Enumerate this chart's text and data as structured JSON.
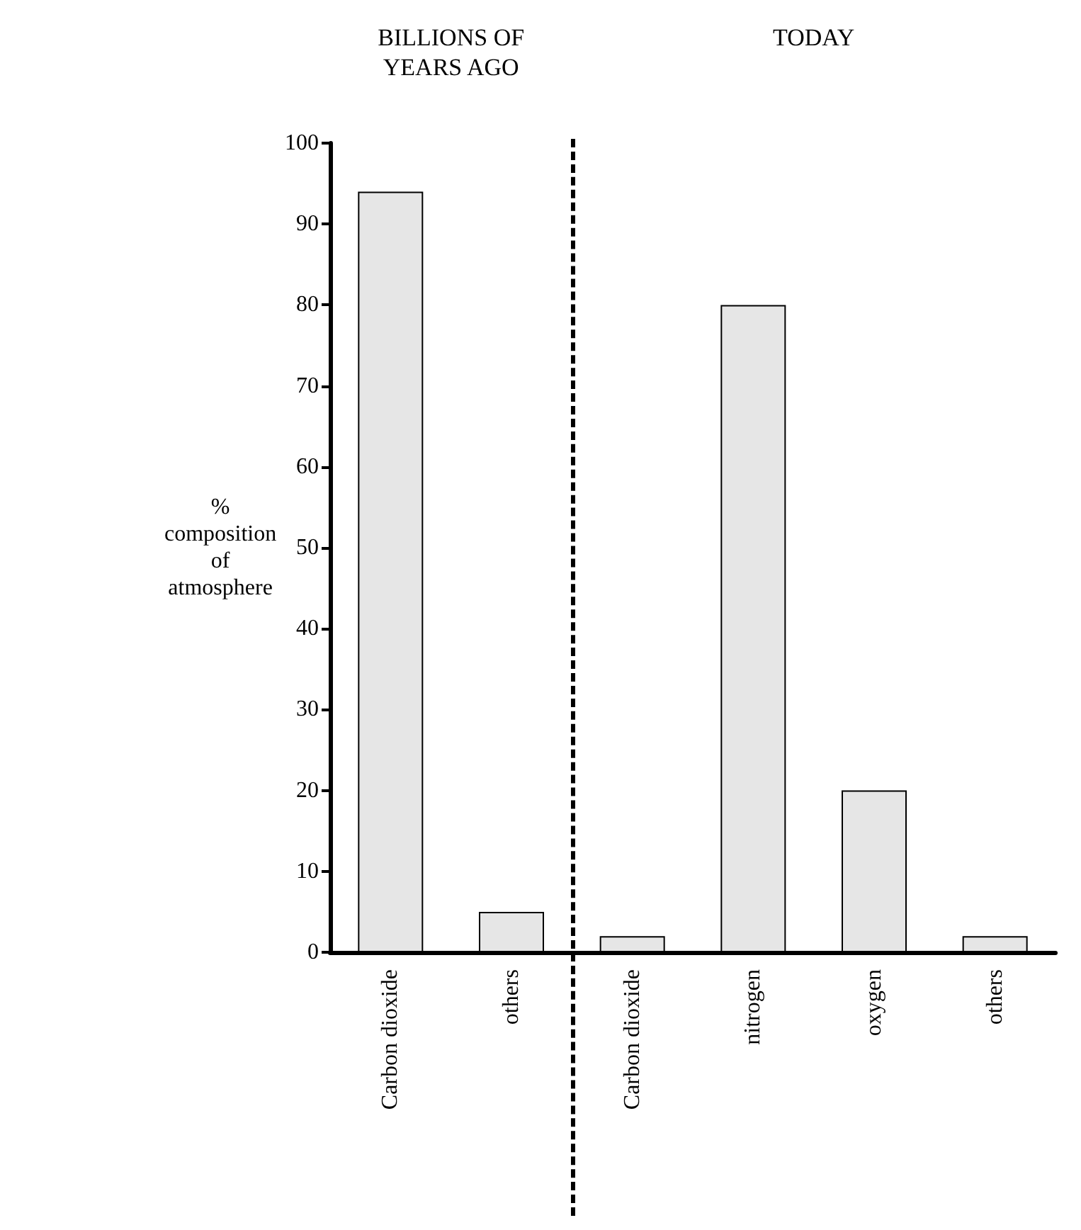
{
  "chart_data": {
    "type": "bar",
    "ylabel": "%\ncomposition\nof\natmosphere",
    "categories": [
      "Carbon dioxide",
      "others",
      "Carbon dioxide",
      "nitrogen",
      "oxygen",
      "others"
    ],
    "values": [
      94,
      5,
      2,
      80,
      20,
      2
    ],
    "color": "#e6e6e6",
    "ylim": [
      0,
      100
    ],
    "yticks": [
      0,
      10,
      20,
      30,
      40,
      50,
      60,
      70,
      80,
      90,
      100
    ],
    "grid": false,
    "annotations": [
      "BILLIONS OF\nYEARS AGO",
      "TODAY"
    ]
  }
}
